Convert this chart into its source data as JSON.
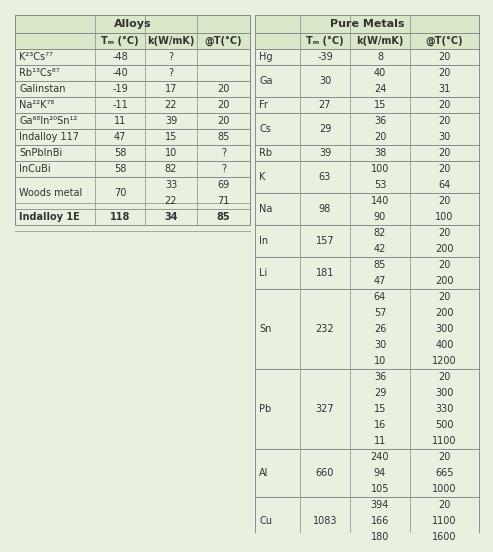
{
  "alloys_title": "Alloys",
  "pure_metals_title": "Pure Metals",
  "col_headers": [
    "Tₘ (°C)",
    "k(W/mK)",
    "@T(°C)"
  ],
  "bg_color": "#e8f0e0",
  "header_bg": "#d8e8c8",
  "line_color": "#888888",
  "text_color": "#333333",
  "alloys": [
    {
      "name": "K²³Cs⁷⁷",
      "Tm": "-48",
      "k": "?",
      "T": ""
    },
    {
      "name": "Rb¹³Cs⁸⁷",
      "Tm": "-40",
      "k": "?",
      "T": ""
    },
    {
      "name": "Galinstan",
      "Tm": "-19",
      "k": "17",
      "T": "20"
    },
    {
      "name": "Na²²K⁷⁸",
      "Tm": "-11",
      "k": "22",
      "T": "20"
    },
    {
      "name": "Ga⁶⁸In²⁰Sn¹²",
      "Tm": "11",
      "k": "39",
      "T": "20"
    },
    {
      "name": "Indalloy 117",
      "Tm": "47",
      "k": "15",
      "T": "85"
    },
    {
      "name": "SnPbInBi",
      "Tm": "58",
      "k": "10",
      "T": "?"
    },
    {
      "name": "InCuBi",
      "Tm": "58",
      "k": "82",
      "T": "?"
    },
    {
      "name": "Woods metal",
      "Tm": "70",
      "k": "33\n22",
      "T": "69\n71"
    },
    {
      "name": "Indalloy 1E",
      "Tm": "118",
      "k": "34",
      "T": "85",
      "bold": true
    }
  ],
  "pure_metals": [
    {
      "name": "Hg",
      "Tm": "-39",
      "k": "8",
      "T": "20"
    },
    {
      "name": "Ga",
      "Tm": "30",
      "k": "40\n24",
      "T": "20\n31"
    },
    {
      "name": "Fr",
      "Tm": "27",
      "k": "15",
      "T": "20"
    },
    {
      "name": "Cs",
      "Tm": "29",
      "k": "36\n20",
      "T": "20\n30"
    },
    {
      "name": "Rb",
      "Tm": "39",
      "k": "38",
      "T": "20"
    },
    {
      "name": "K",
      "Tm": "63",
      "k": "100\n53",
      "T": "20\n64"
    },
    {
      "name": "Na",
      "Tm": "98",
      "k": "140\n90",
      "T": "20\n100"
    },
    {
      "name": "In",
      "Tm": "157",
      "k": "82\n42",
      "T": "20\n200"
    },
    {
      "name": "Li",
      "Tm": "181",
      "k": "85\n47",
      "T": "20\n200"
    },
    {
      "name": "Sn",
      "Tm": "232",
      "k": "64\n57\n26\n30\n10",
      "T": "20\n200\n300\n400\n1200"
    },
    {
      "name": "Pb",
      "Tm": "327",
      "k": "36\n29\n15\n16\n11",
      "T": "20\n300\n330\n500\n1100"
    },
    {
      "name": "Al",
      "Tm": "660",
      "k": "240\n94\n105",
      "T": "20\n665\n1000"
    },
    {
      "name": "Cu",
      "Tm": "1083",
      "k": "394\n166\n180",
      "T": "20\n1100\n1600"
    }
  ]
}
